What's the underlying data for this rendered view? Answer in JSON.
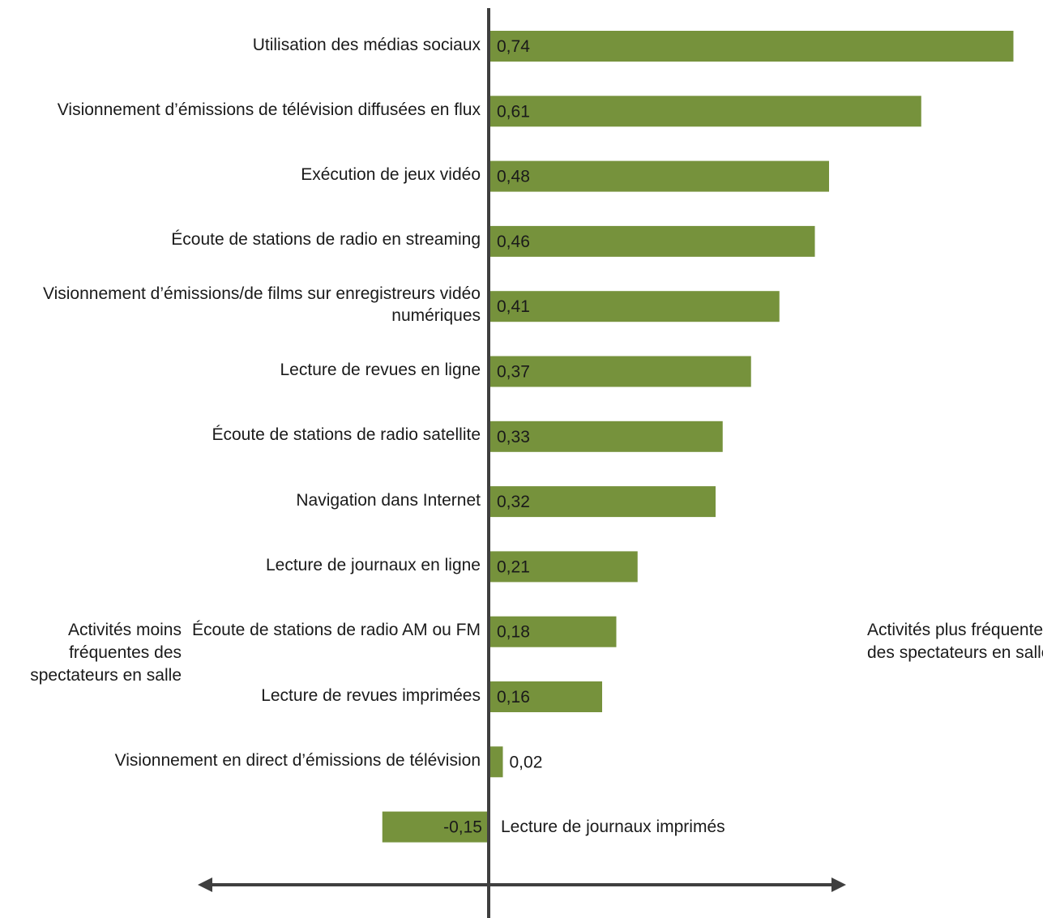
{
  "chart_data": {
    "type": "bar",
    "orientation": "horizontal",
    "categories": [
      "Utilisation des médias sociaux",
      "Visionnement d’émissions de télévision diffusées en flux",
      "Exécution de jeux vidéo",
      "Écoute de stations de radio en streaming",
      "Visionnement d’émissions/de films  sur enregistreurs vidéo numériques",
      "Lecture de revues en ligne",
      "Écoute de stations de radio satellite",
      "Navigation dans Internet",
      "Lecture de journaux en ligne",
      "Écoute de stations de radio AM ou FM",
      "Lecture de revues imprimées",
      "Visionnement en direct d’émissions de télévision",
      "Lecture de journaux imprimés"
    ],
    "values": [
      0.74,
      0.61,
      0.48,
      0.46,
      0.41,
      0.37,
      0.33,
      0.32,
      0.21,
      0.18,
      0.16,
      0.02,
      -0.15
    ],
    "value_labels": [
      "0,74",
      "0,61",
      "0,48",
      "0,46",
      "0,41",
      "0,37",
      "0,33",
      "0,32",
      "0,21",
      "0,18",
      "0,16",
      "0,02",
      "-0,15"
    ],
    "xlim": [
      -0.15,
      0.74
    ],
    "bar_color": "#76923c",
    "axis_color": "#3f3f3f",
    "annotations": {
      "left": "Activités moins fréquentes des spectateurs en salle",
      "right": "Activités plus fréquentes des spectateurs en salle"
    },
    "grid": false,
    "legend": "none"
  }
}
